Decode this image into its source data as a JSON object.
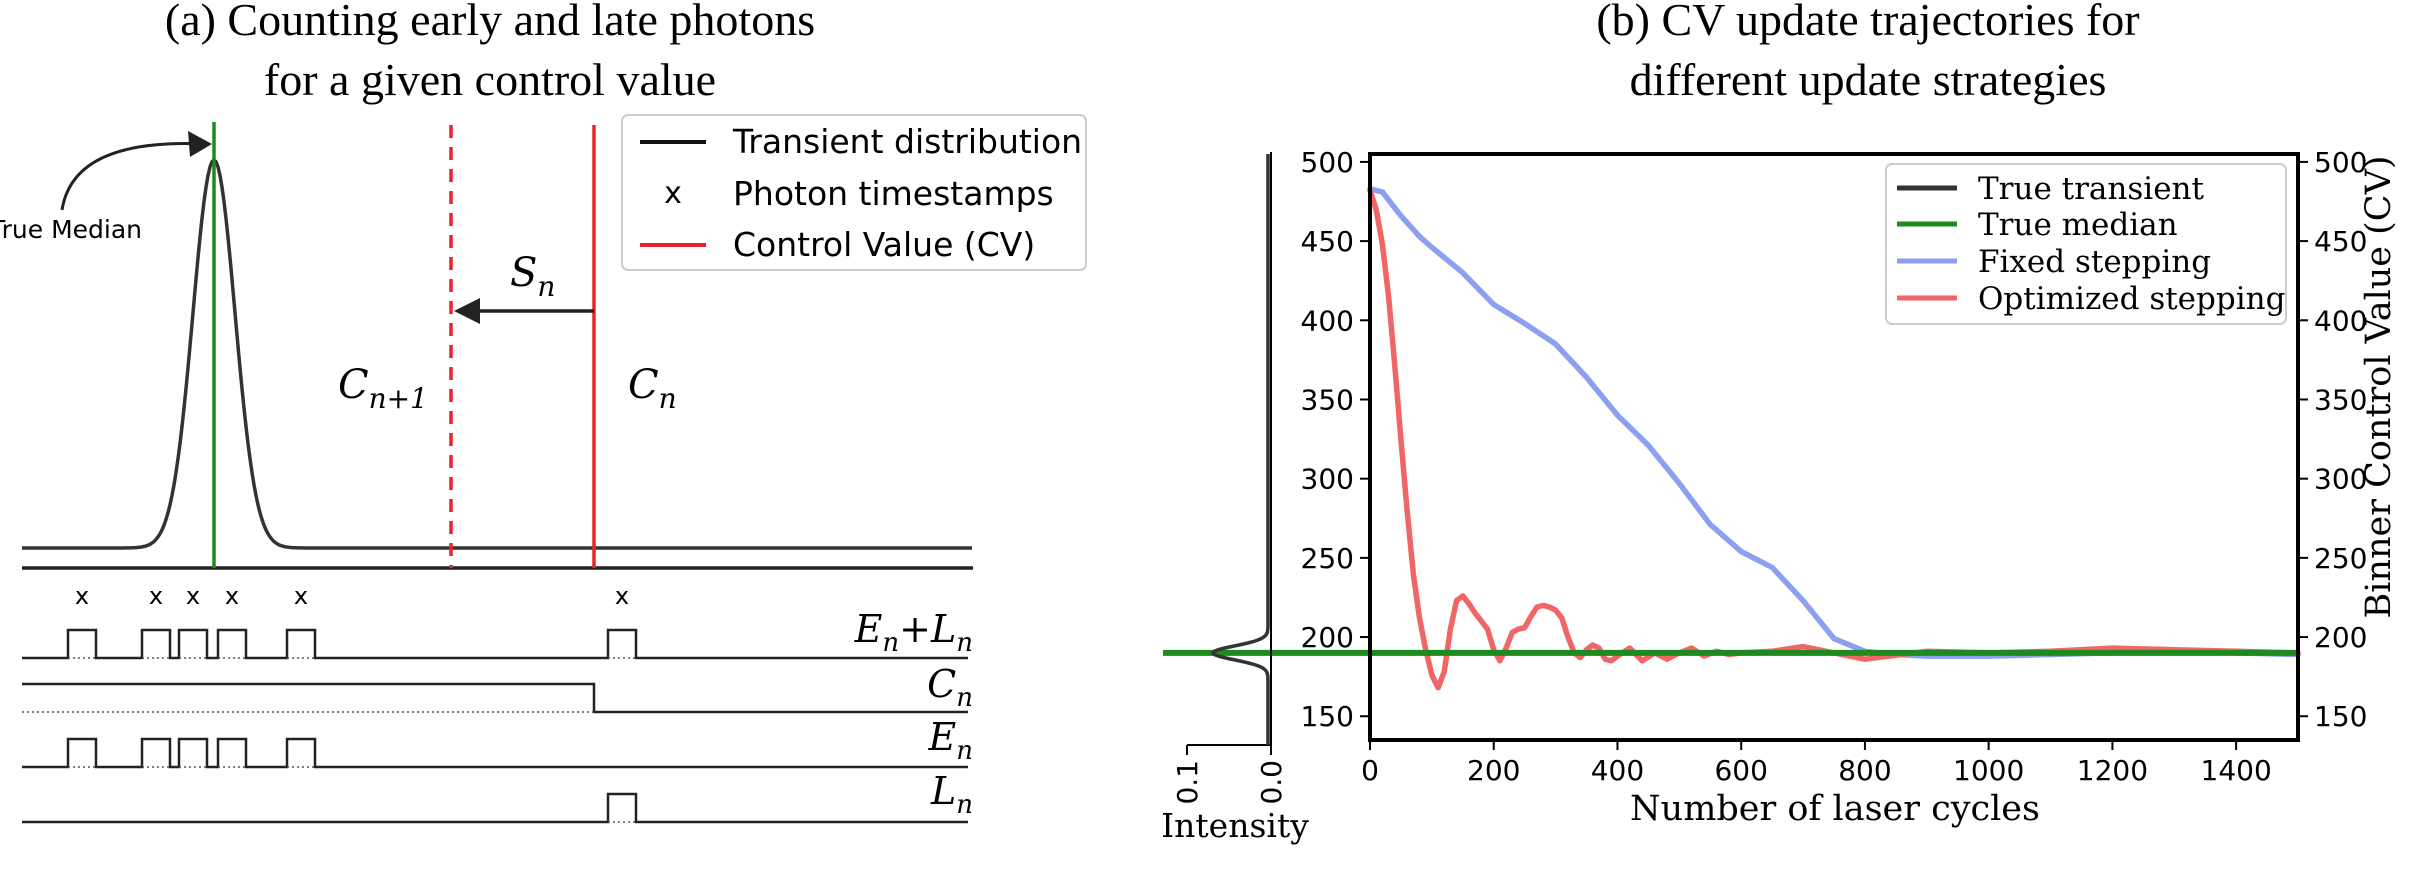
{
  "chart_data": [
    {
      "type": "diagram",
      "title": [
        "(a) Counting early and late photons",
        "for a given control value"
      ],
      "annotation_true_median": "True Median",
      "labels": {
        "step": "S",
        "step_sub": "n",
        "cv_next": "C",
        "cv_next_sub": "n+1",
        "cv_now": "C",
        "cv_now_sub": "n"
      },
      "legend": [
        "Transient distribution",
        "Photon timestamps",
        "Control Value (CV)"
      ],
      "photon_marker": "x",
      "signals": [
        {
          "base": "E",
          "sub": "n",
          "extra_base": "L",
          "extra_sub": "n",
          "op": "+"
        },
        {
          "base": "C",
          "sub": "n"
        },
        {
          "base": "E",
          "sub": "n"
        },
        {
          "base": "L",
          "sub": "n"
        }
      ],
      "colors": {
        "median": "#1e8a1e",
        "cv": "#e8262a",
        "curve": "#333333"
      }
    },
    {
      "type": "line",
      "title": [
        "(b) CV update trajectories for",
        "different update strategies"
      ],
      "xlabel": "Number of laser cycles",
      "ylabel_right": "Binner Control Value (CV)",
      "xlim": [
        0,
        1500
      ],
      "ylim": [
        135,
        505
      ],
      "xticks": [
        0,
        200,
        400,
        600,
        800,
        1000,
        1200,
        1400
      ],
      "yticks": [
        150,
        200,
        250,
        300,
        350,
        400,
        450,
        500
      ],
      "intensity_axis": {
        "label": "Intensity",
        "ticks": [
          "0.1",
          "0.0"
        ]
      },
      "legend": [
        "True transient",
        "True median",
        "Fixed stepping",
        "Optimized stepping"
      ],
      "true_median": 190,
      "series": [
        {
          "name": "Fixed stepping",
          "color": "#8c9ff0",
          "x": [
            0,
            20,
            50,
            80,
            100,
            150,
            200,
            250,
            300,
            350,
            400,
            450,
            500,
            550,
            600,
            650,
            700,
            750,
            800,
            850,
            900,
            1000,
            1100,
            1200,
            1300,
            1400,
            1500
          ],
          "y": [
            483,
            481,
            466,
            453,
            446,
            430,
            410,
            398,
            385,
            364,
            340,
            321,
            297,
            271,
            254,
            244,
            223,
            199,
            191,
            189,
            188,
            188,
            189,
            190,
            191,
            190,
            189
          ]
        },
        {
          "name": "Optimized stepping",
          "color": "#f06666",
          "x": [
            0,
            10,
            20,
            30,
            40,
            50,
            60,
            70,
            80,
            90,
            100,
            110,
            120,
            130,
            140,
            150,
            160,
            170,
            180,
            190,
            200,
            210,
            220,
            230,
            240,
            250,
            260,
            270,
            280,
            290,
            300,
            310,
            320,
            330,
            340,
            350,
            360,
            370,
            380,
            390,
            400,
            420,
            440,
            460,
            480,
            500,
            520,
            540,
            560,
            580,
            600,
            650,
            700,
            750,
            800,
            900,
            1000,
            1100,
            1200,
            1300,
            1400,
            1500
          ],
          "y": [
            482,
            470,
            448,
            415,
            372,
            325,
            280,
            240,
            212,
            192,
            176,
            168,
            178,
            205,
            223,
            226,
            221,
            215,
            210,
            205,
            192,
            185,
            193,
            203,
            205,
            206,
            213,
            219,
            220,
            219,
            217,
            212,
            200,
            190,
            187,
            192,
            195,
            193,
            186,
            185,
            188,
            193,
            185,
            190,
            186,
            190,
            193,
            188,
            191,
            189,
            190,
            191,
            194,
            190,
            186,
            191,
            190,
            191,
            193,
            192,
            191,
            190
          ]
        }
      ]
    }
  ]
}
